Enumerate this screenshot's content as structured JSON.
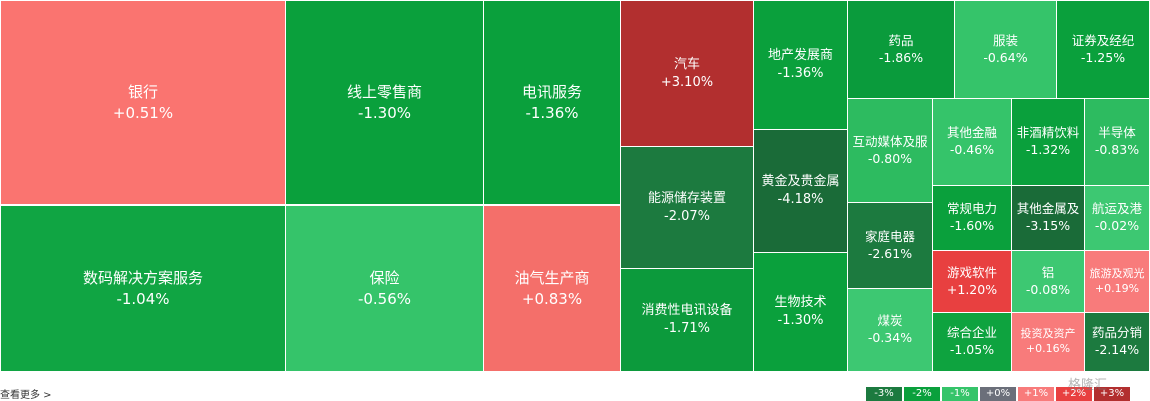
{
  "tiles": [
    {
      "name": "银行",
      "change": "+0.51%"
    },
    {
      "name": "数码解决方案服务",
      "change": "-1.04%"
    },
    {
      "name": "线上零售商",
      "change": "-1.30%"
    },
    {
      "name": "保险",
      "change": "-0.56%"
    },
    {
      "name": "电讯服务",
      "change": "-1.36%"
    },
    {
      "name": "油气生产商",
      "change": "+0.83%"
    },
    {
      "name": "汽车",
      "change": "+3.10%"
    },
    {
      "name": "能源储存装置",
      "change": "-2.07%"
    },
    {
      "name": "消费性电讯设备",
      "change": "-1.71%"
    },
    {
      "name": "地产发展商",
      "change": "-1.36%"
    },
    {
      "name": "黄金及贵金属",
      "change": "-4.18%"
    },
    {
      "name": "生物技术",
      "change": "-1.30%"
    },
    {
      "name": "药品",
      "change": "-1.86%"
    },
    {
      "name": "服装",
      "change": "-0.64%"
    },
    {
      "name": "证券及经纪",
      "change": "-1.25%"
    },
    {
      "name": "互动媒体及服",
      "change": "-0.80%"
    },
    {
      "name": "家庭电器",
      "change": "-2.61%"
    },
    {
      "name": "煤炭",
      "change": "-0.34%"
    },
    {
      "name": "其他金融",
      "change": "-0.46%"
    },
    {
      "name": "常规电力",
      "change": "-1.60%"
    },
    {
      "name": "游戏软件",
      "change": "+1.20%"
    },
    {
      "name": "综合企业",
      "change": "-1.05%"
    },
    {
      "name": "非酒精饮料",
      "change": "-1.32%"
    },
    {
      "name": "其他金属及",
      "change": "-3.15%"
    },
    {
      "name": "铝",
      "change": "-0.08%"
    },
    {
      "name": "投资及资产",
      "change": "+0.16%"
    },
    {
      "name": "半导体",
      "change": "-0.83%"
    },
    {
      "name": "航运及港",
      "change": "-0.02%"
    },
    {
      "name": "旅游及观光",
      "change": "+0.19%"
    },
    {
      "name": "药品分销",
      "change": "-2.14%"
    }
  ],
  "footer": {
    "more": "查看更多 >",
    "legend": [
      "-3%",
      "-2%",
      "-1%",
      "+0%",
      "+1%",
      "+2%",
      "+3%"
    ]
  },
  "watermark": "格隆汇"
}
